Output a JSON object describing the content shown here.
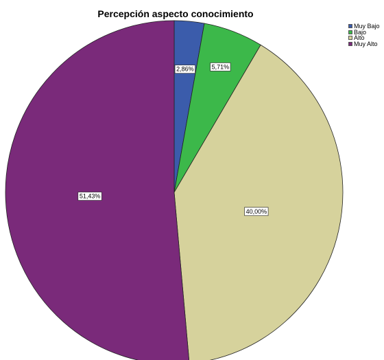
{
  "chart_data": {
    "type": "pie",
    "title": "Percepción aspecto conocimiento",
    "legend_position": "top-right",
    "slices": [
      {
        "label": "Muy Bajo",
        "value": 2.86,
        "display": "2,86%",
        "color": "#3b5cab"
      },
      {
        "label": "Bajo",
        "value": 5.71,
        "display": "5,71%",
        "color": "#3cb84a"
      },
      {
        "label": "Alto",
        "value": 40.0,
        "display": "40,00%",
        "color": "#d6d29c"
      },
      {
        "label": "Muy Alto",
        "value": 51.43,
        "display": "51,43%",
        "color": "#7a2a7a"
      }
    ]
  }
}
